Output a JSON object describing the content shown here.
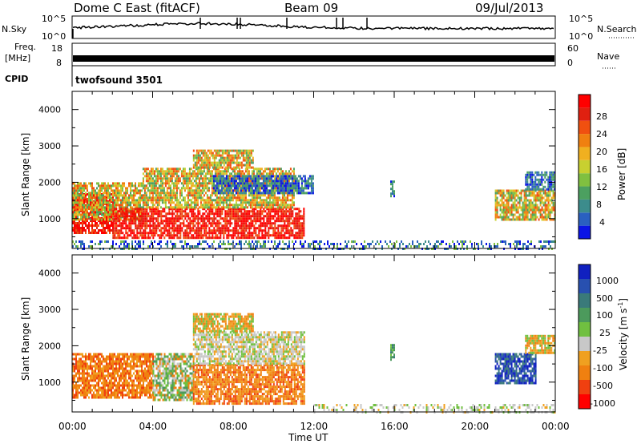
{
  "header": {
    "station": "Dome C East (fitACF)",
    "beam": "Beam 09",
    "date": "09/Jul/2013"
  },
  "strips": {
    "nsky_label": "N.Sky",
    "nsky_ticks": [
      "10^5",
      "10^0"
    ],
    "nsearch_label": "N.Search",
    "nsearch_ticks": [
      "10^5",
      "10^0"
    ],
    "freq_label_1": "Freq.",
    "freq_label_2": "[MHz]",
    "freq_ticks": [
      "18",
      "8"
    ],
    "nave_label": "Nave",
    "nave_ticks": [
      "60",
      "0"
    ],
    "cpid_label": "CPID",
    "cpid_value": "twofsound 3501"
  },
  "colorbars": {
    "power": {
      "label": "Power [dB]",
      "ticks": [
        "28",
        "24",
        "20",
        "16",
        "12",
        "8",
        "4"
      ],
      "colors": [
        "#0a14e6",
        "#2a60c0",
        "#3c8c8c",
        "#4ca060",
        "#80c040",
        "#c8d030",
        "#f0b020",
        "#f08010",
        "#f05010",
        "#e02010",
        "#ff0000"
      ]
    },
    "velocity": {
      "label": "Velocity [m s",
      "label_sup": "-1",
      "label_end": "]",
      "ticks": [
        "1000",
        "500",
        "100",
        "25",
        "-25",
        "-100",
        "-500",
        "-1000"
      ],
      "colors": [
        "#1020c0",
        "#2850b0",
        "#3a7a7a",
        "#4c9a5c",
        "#70c040",
        "#c8c8c8",
        "#f0a020",
        "#f08010",
        "#f04010",
        "#ff0000"
      ]
    }
  },
  "chart_data": [
    {
      "type": "heatmap",
      "title": "Power",
      "xlabel": "Time UT",
      "ylabel": "Slant Range [km]",
      "x_ticks": [
        "00:00",
        "04:00",
        "08:00",
        "12:00",
        "16:00",
        "20:00",
        "00:00"
      ],
      "y_ticks": [
        "4000",
        "3000",
        "2000",
        "1000"
      ],
      "xlim_hours": [
        0,
        24
      ],
      "ylim_km": [
        180,
        4500
      ],
      "regions": [
        {
          "t0": 0.0,
          "t1": 2.0,
          "r0": 600,
          "r1": 1700,
          "level": "high"
        },
        {
          "t0": 0.0,
          "t1": 3.5,
          "r0": 1000,
          "r1": 2000,
          "level": "mid"
        },
        {
          "t0": 2.0,
          "t1": 11.5,
          "r0": 500,
          "r1": 1300,
          "level": "high"
        },
        {
          "t0": 3.5,
          "t1": 11.0,
          "r0": 1300,
          "r1": 2400,
          "level": "mid"
        },
        {
          "t0": 7.0,
          "t1": 12.0,
          "r0": 1700,
          "r1": 2200,
          "level": "low"
        },
        {
          "t0": 6.0,
          "t1": 9.0,
          "r0": 2400,
          "r1": 2900,
          "level": "mid"
        },
        {
          "t0": 15.8,
          "t1": 16.0,
          "r0": 1650,
          "r1": 2050,
          "level": "low"
        },
        {
          "t0": 21.0,
          "t1": 24.0,
          "r0": 1000,
          "r1": 1800,
          "level": "mid"
        },
        {
          "t0": 22.5,
          "t1": 24.0,
          "r0": 1800,
          "r1": 2300,
          "level": "low"
        },
        {
          "t0": 0.0,
          "t1": 24.0,
          "r0": 180,
          "r1": 400,
          "level": "ground"
        }
      ]
    },
    {
      "type": "heatmap",
      "title": "Velocity",
      "xlabel": "Time UT",
      "ylabel": "Slant Range [km]",
      "x_ticks": [
        "00:00",
        "04:00",
        "08:00",
        "12:00",
        "16:00",
        "20:00",
        "00:00"
      ],
      "y_ticks": [
        "4000",
        "3000",
        "2000",
        "1000"
      ],
      "xlim_hours": [
        0,
        24
      ],
      "ylim_km": [
        180,
        4500
      ],
      "regions": [
        {
          "t0": 0.0,
          "t1": 4.0,
          "r0": 600,
          "r1": 1800,
          "level": "neg_mid"
        },
        {
          "t0": 4.0,
          "t1": 6.0,
          "r0": 500,
          "r1": 1800,
          "level": "mixed"
        },
        {
          "t0": 6.0,
          "t1": 11.5,
          "r0": 400,
          "r1": 1500,
          "level": "neg_mid"
        },
        {
          "t0": 6.0,
          "t1": 11.5,
          "r0": 1500,
          "r1": 2400,
          "level": "near_zero"
        },
        {
          "t0": 6.0,
          "t1": 9.0,
          "r0": 2400,
          "r1": 2900,
          "level": "neg_low"
        },
        {
          "t0": 15.8,
          "t1": 16.0,
          "r0": 1650,
          "r1": 2050,
          "level": "pos_low"
        },
        {
          "t0": 21.0,
          "t1": 23.0,
          "r0": 1000,
          "r1": 1800,
          "level": "pos_high"
        },
        {
          "t0": 22.5,
          "t1": 24.0,
          "r0": 1800,
          "r1": 2300,
          "level": "neg_low"
        },
        {
          "t0": 12.0,
          "t1": 24.0,
          "r0": 180,
          "r1": 400,
          "level": "near_zero"
        }
      ]
    }
  ]
}
